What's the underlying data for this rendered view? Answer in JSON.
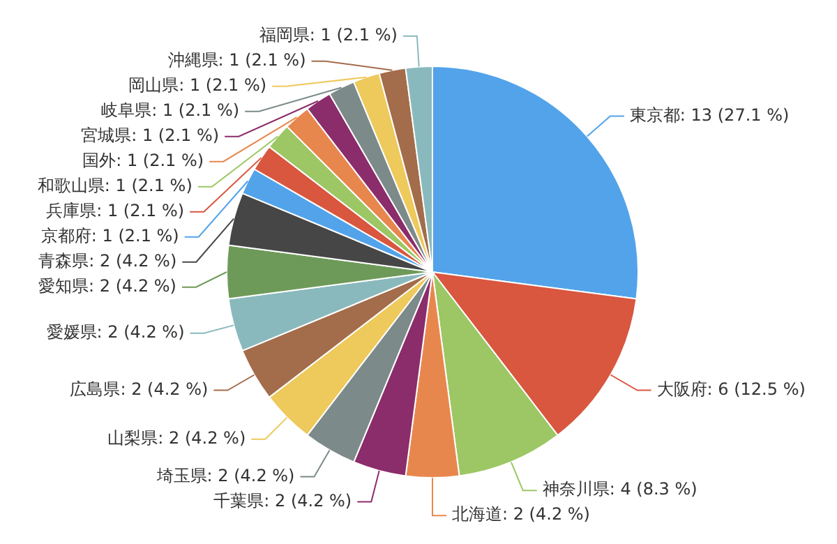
{
  "chart_data": {
    "type": "pie",
    "categories": [
      "東京都",
      "大阪府",
      "神奈川県",
      "北海道",
      "千葉県",
      "埼玉県",
      "山梨県",
      "広島県",
      "愛媛県",
      "愛知県",
      "青森県",
      "京都府",
      "兵庫県",
      "和歌山県",
      "国外",
      "宮城県",
      "岐阜県",
      "岡山県",
      "沖縄県",
      "福岡県"
    ],
    "values": [
      13,
      6,
      4,
      2,
      2,
      2,
      2,
      2,
      2,
      2,
      2,
      1,
      1,
      1,
      1,
      1,
      1,
      1,
      1,
      1
    ],
    "colors": [
      "#52a3ea",
      "#d9563f",
      "#9cc764",
      "#e8874d",
      "#8b2c6b",
      "#7c8a8a",
      "#eec95b",
      "#a36c4a",
      "#8ab9bd",
      "#6e9a59",
      "#464646",
      "#52a3ea",
      "#d9563f",
      "#9cc764",
      "#e8874d",
      "#8b2c6b",
      "#7c8a8a",
      "#eec95b",
      "#a36c4a",
      "#8ab9bd"
    ],
    "value_labels": [
      "13 (27.1 %)",
      "6 (12.5 %)",
      "4 (8.3 %)",
      "2 (4.2 %)",
      "2 (4.2 %)",
      "2 (4.2 %)",
      "2 (4.2 %)",
      "2 (4.2 %)",
      "2 (4.2 %)",
      "2 (4.2 %)",
      "2 (4.2 %)",
      "1 (2.1 %)",
      "1 (2.1 %)",
      "1 (2.1 %)",
      "1 (2.1 %)",
      "1 (2.1 %)",
      "1 (2.1 %)",
      "1 (2.1 %)",
      "1 (2.1 %)",
      "1 (2.1 %)"
    ],
    "legend": false
  }
}
